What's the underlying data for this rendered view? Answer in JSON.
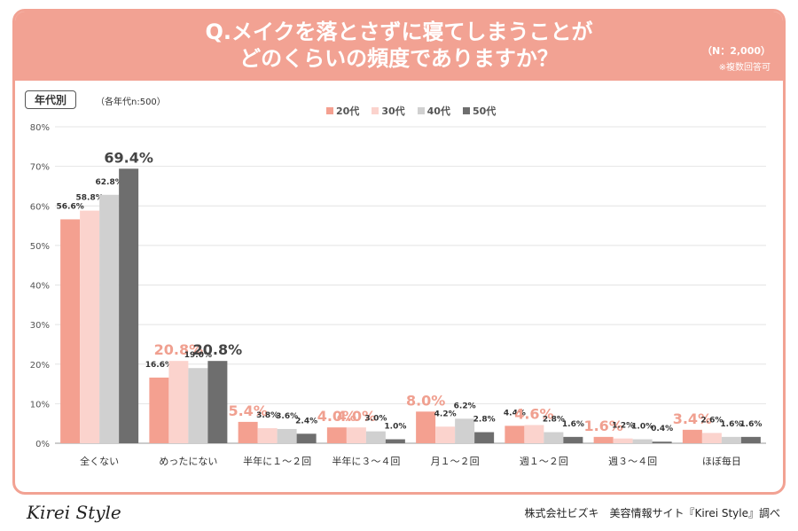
{
  "header": {
    "title_line1": "Q.メイクを落とさずに寝てしまうことが",
    "title_line2": "どのくらいの頻度でありますか？",
    "n_label": "（N：2,000）",
    "note": "※複数回答可"
  },
  "filter_tag": "年代別",
  "sample_note": "（各年代n:500）",
  "footer": {
    "logo": "Kirei Style",
    "credit": "株式会社ビズキ　美容情報サイト『Kirei Style』調べ"
  },
  "colors": {
    "accent": "#f2a293",
    "series": [
      "#f4a090",
      "#fbd3cd",
      "#d0d0d0",
      "#6e6e6e"
    ],
    "highlight_label": "#f0a090"
  },
  "chart_data": {
    "type": "bar",
    "categories": [
      "全くない",
      "めったにない",
      "半年に１～２回",
      "半年に３～４回",
      "月１～２回",
      "週１～２回",
      "週３～４回",
      "ほぼ毎日"
    ],
    "series": [
      {
        "name": "20代",
        "values": [
          56.6,
          16.6,
          5.4,
          4.0,
          8.0,
          4.4,
          1.6,
          3.4
        ]
      },
      {
        "name": "30代",
        "values": [
          58.8,
          20.8,
          3.8,
          4.0,
          4.2,
          4.6,
          1.2,
          2.6
        ]
      },
      {
        "name": "40代",
        "values": [
          62.8,
          19.0,
          3.6,
          3.0,
          6.2,
          2.8,
          1.0,
          1.6
        ]
      },
      {
        "name": "50代",
        "values": [
          69.4,
          20.8,
          2.4,
          1.0,
          2.8,
          1.6,
          0.4,
          1.6
        ]
      }
    ],
    "highlights": [
      {
        "category": 0,
        "series": 3
      },
      {
        "category": 1,
        "series": 1
      },
      {
        "category": 1,
        "series": 3
      },
      {
        "category": 2,
        "series": 0
      },
      {
        "category": 3,
        "series": 0
      },
      {
        "category": 3,
        "series": 1
      },
      {
        "category": 4,
        "series": 0
      },
      {
        "category": 5,
        "series": 1
      },
      {
        "category": 6,
        "series": 0
      },
      {
        "category": 7,
        "series": 0
      }
    ],
    "ylim": [
      0,
      80
    ],
    "yticks": [
      "0%",
      "10%",
      "20%",
      "30%",
      "40%",
      "50%",
      "60%",
      "70%",
      "80%"
    ],
    "ylabel": "",
    "xlabel": "",
    "grid": true,
    "legend_position": "top"
  }
}
